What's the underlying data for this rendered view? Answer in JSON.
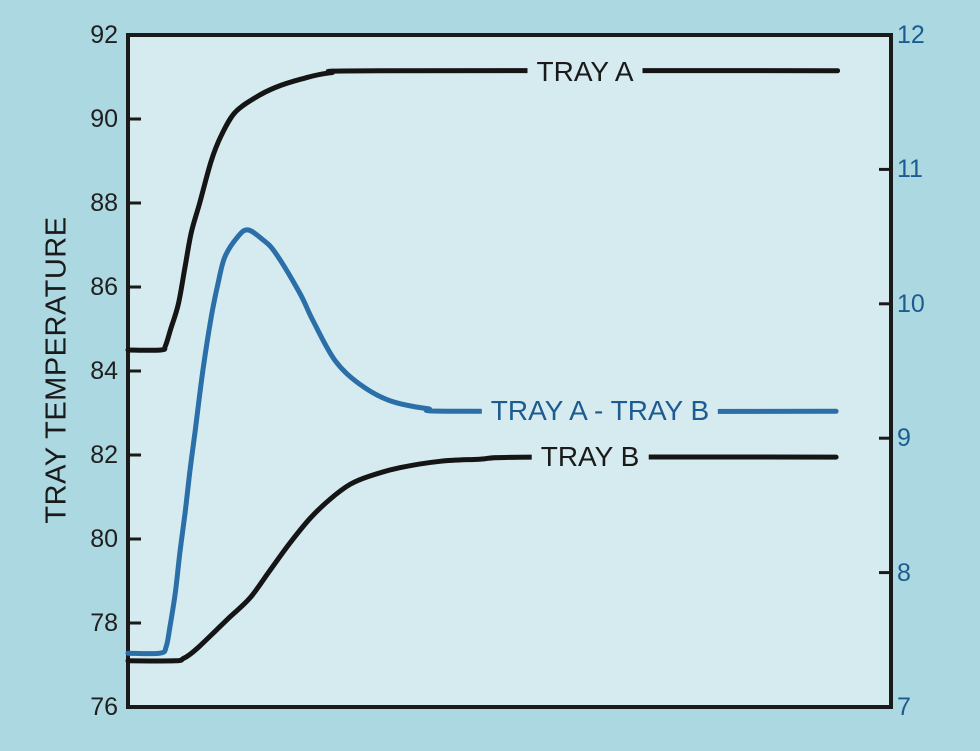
{
  "chart_data": {
    "type": "line",
    "title": "",
    "xlabel": "",
    "x_axis": {
      "ticks": [],
      "note": "no x-axis tick marks or labels visible"
    },
    "left_axis": {
      "title": "TRAY TEMPERATURE",
      "min": 76,
      "max": 92,
      "labels": [
        92,
        90,
        88,
        86,
        84,
        82,
        80,
        78,
        76
      ],
      "tick_marks": [
        90,
        88,
        86,
        84,
        82,
        80,
        78
      ],
      "label_color": "#1f1f1f"
    },
    "right_axis": {
      "title": "",
      "min": 7,
      "max": 12,
      "labels": [
        12,
        11,
        10,
        9,
        8,
        7
      ],
      "tick_marks": [
        11,
        10,
        9,
        8
      ],
      "label_color": "#1d5c90"
    },
    "grid": false,
    "legend": "inline labels on curves",
    "plot_background": "#d6ebf0",
    "outer_background": "#acd8e2",
    "frame_color": "#1a1a1a",
    "series": [
      {
        "label": "TRAY A",
        "axis": "left",
        "color": "#151515",
        "stroke_width": 5,
        "start_value": 84.5,
        "final_value": 91.15,
        "points": [
          [
            0.0,
            84.5
          ],
          [
            0.043,
            84.5
          ],
          [
            0.049,
            84.6
          ],
          [
            0.056,
            85.0
          ],
          [
            0.066,
            85.6
          ],
          [
            0.075,
            86.5
          ],
          [
            0.083,
            87.3
          ],
          [
            0.094,
            88.0
          ],
          [
            0.109,
            89.0
          ],
          [
            0.122,
            89.6
          ],
          [
            0.14,
            90.15
          ],
          [
            0.166,
            90.5
          ],
          [
            0.193,
            90.75
          ],
          [
            0.227,
            90.95
          ],
          [
            0.265,
            91.1
          ],
          [
            0.33,
            91.15
          ],
          [
            0.93,
            91.15
          ]
        ]
      },
      {
        "label": "TRAY B",
        "axis": "left",
        "color": "#151515",
        "stroke_width": 5,
        "start_value": 77.1,
        "final_value": 81.95,
        "points": [
          [
            0.0,
            77.1
          ],
          [
            0.062,
            77.1
          ],
          [
            0.072,
            77.15
          ],
          [
            0.081,
            77.25
          ],
          [
            0.094,
            77.45
          ],
          [
            0.114,
            77.8
          ],
          [
            0.134,
            78.15
          ],
          [
            0.16,
            78.6
          ],
          [
            0.186,
            79.25
          ],
          [
            0.212,
            79.9
          ],
          [
            0.239,
            80.5
          ],
          [
            0.265,
            80.95
          ],
          [
            0.291,
            81.3
          ],
          [
            0.317,
            81.5
          ],
          [
            0.357,
            81.7
          ],
          [
            0.409,
            81.85
          ],
          [
            0.461,
            81.9
          ],
          [
            0.531,
            81.95
          ],
          [
            0.928,
            81.95
          ]
        ]
      },
      {
        "label": "TRAY A - TRAY B",
        "axis": "right",
        "color": "#2b6fa8",
        "stroke_width": 5,
        "start_value": 7.4,
        "peak_value": 10.55,
        "final_value": 9.2,
        "points": [
          [
            0.0,
            7.4
          ],
          [
            0.042,
            7.4
          ],
          [
            0.05,
            7.45
          ],
          [
            0.055,
            7.6
          ],
          [
            0.062,
            7.85
          ],
          [
            0.068,
            8.15
          ],
          [
            0.075,
            8.45
          ],
          [
            0.081,
            8.75
          ],
          [
            0.088,
            9.05
          ],
          [
            0.098,
            9.5
          ],
          [
            0.109,
            9.9
          ],
          [
            0.118,
            10.15
          ],
          [
            0.127,
            10.35
          ],
          [
            0.144,
            10.5
          ],
          [
            0.157,
            10.55
          ],
          [
            0.176,
            10.48
          ],
          [
            0.193,
            10.38
          ],
          [
            0.225,
            10.08
          ],
          [
            0.242,
            9.88
          ],
          [
            0.271,
            9.58
          ],
          [
            0.304,
            9.4
          ],
          [
            0.343,
            9.28
          ],
          [
            0.392,
            9.22
          ],
          [
            0.444,
            9.2
          ],
          [
            0.928,
            9.2
          ]
        ]
      }
    ]
  }
}
